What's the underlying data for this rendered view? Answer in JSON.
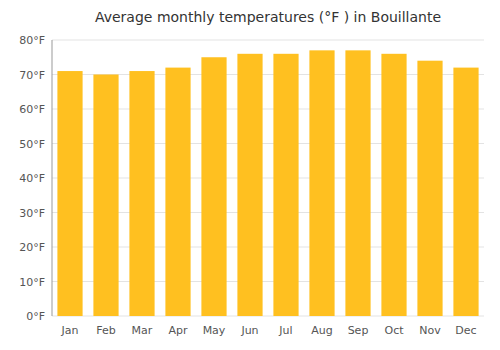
{
  "chart_data": {
    "type": "bar",
    "title": "Average monthly temperatures (°F ) in Bouillante",
    "categories": [
      "Jan",
      "Feb",
      "Mar",
      "Apr",
      "May",
      "Jun",
      "Jul",
      "Aug",
      "Sep",
      "Oct",
      "Nov",
      "Dec"
    ],
    "values": [
      71,
      70,
      71,
      72,
      75,
      76,
      76,
      77,
      77,
      76,
      74,
      72
    ],
    "color": "#FFC020",
    "ylim": [
      0,
      80
    ],
    "yticks": [
      {
        "value": 0,
        "label": "0°F"
      },
      {
        "value": 10,
        "label": "10°F"
      },
      {
        "value": 20,
        "label": "20°F"
      },
      {
        "value": 30,
        "label": "30°F"
      },
      {
        "value": 40,
        "label": "40°F"
      },
      {
        "value": 50,
        "label": "50°F"
      },
      {
        "value": 60,
        "label": "60°F"
      },
      {
        "value": 70,
        "label": "70°F"
      },
      {
        "value": 80,
        "label": "80°F"
      }
    ],
    "grid": true
  }
}
